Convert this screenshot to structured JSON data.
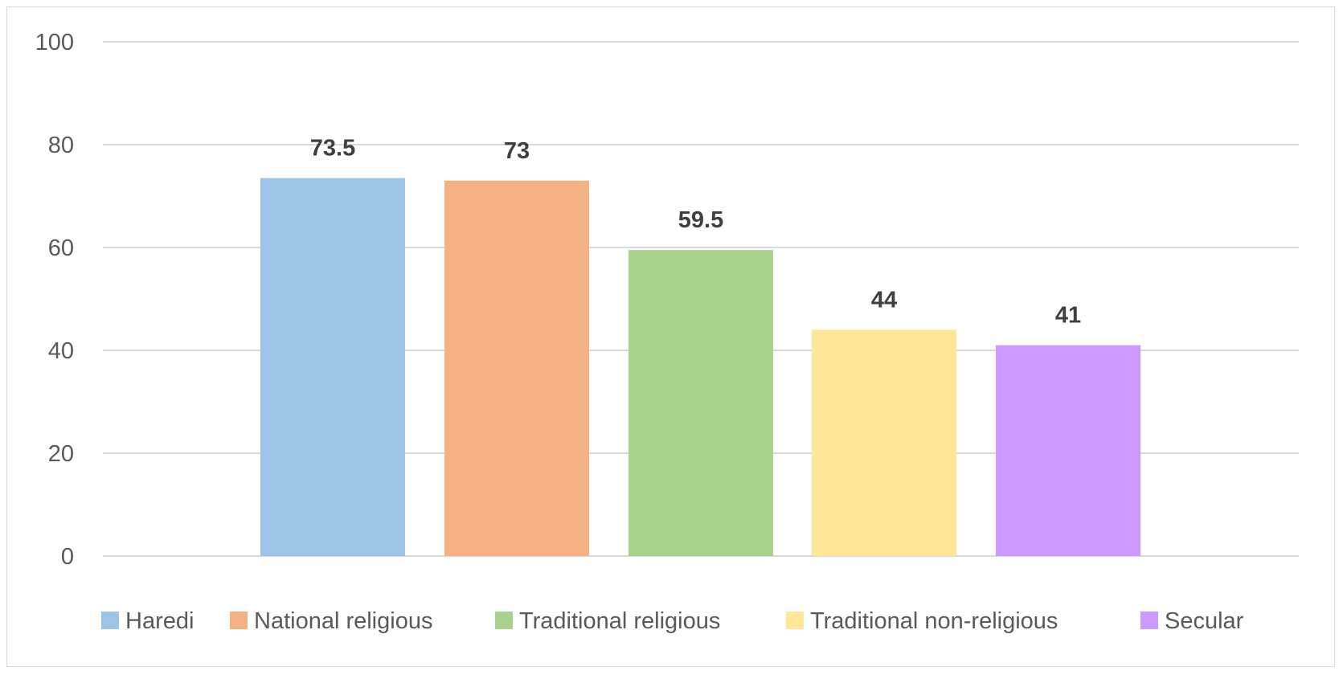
{
  "chart_data": {
    "type": "bar",
    "categories": [
      "Haredi",
      "National religious",
      "Traditional religious",
      "Traditional non-religious",
      "Secular"
    ],
    "values": [
      73.5,
      73,
      59.5,
      44,
      41
    ],
    "data_labels": [
      "73.5",
      "73",
      "59.5",
      "44",
      "41"
    ],
    "colors": [
      "#9dc3e6",
      "#f4b183",
      "#a9d18e",
      "#ffe699",
      "#cc99ff"
    ],
    "ylim": [
      0,
      100
    ],
    "yticks": [
      0,
      20,
      40,
      60,
      80,
      100
    ],
    "ytick_labels": [
      "0",
      "20",
      "40",
      "60",
      "80",
      "100"
    ],
    "title": "",
    "xlabel": "",
    "ylabel": "",
    "grid": true,
    "legend_position": "bottom",
    "legend": [
      "Haredi",
      "National religious",
      "Traditional religious",
      "Traditional non-religious",
      "Secular"
    ]
  }
}
